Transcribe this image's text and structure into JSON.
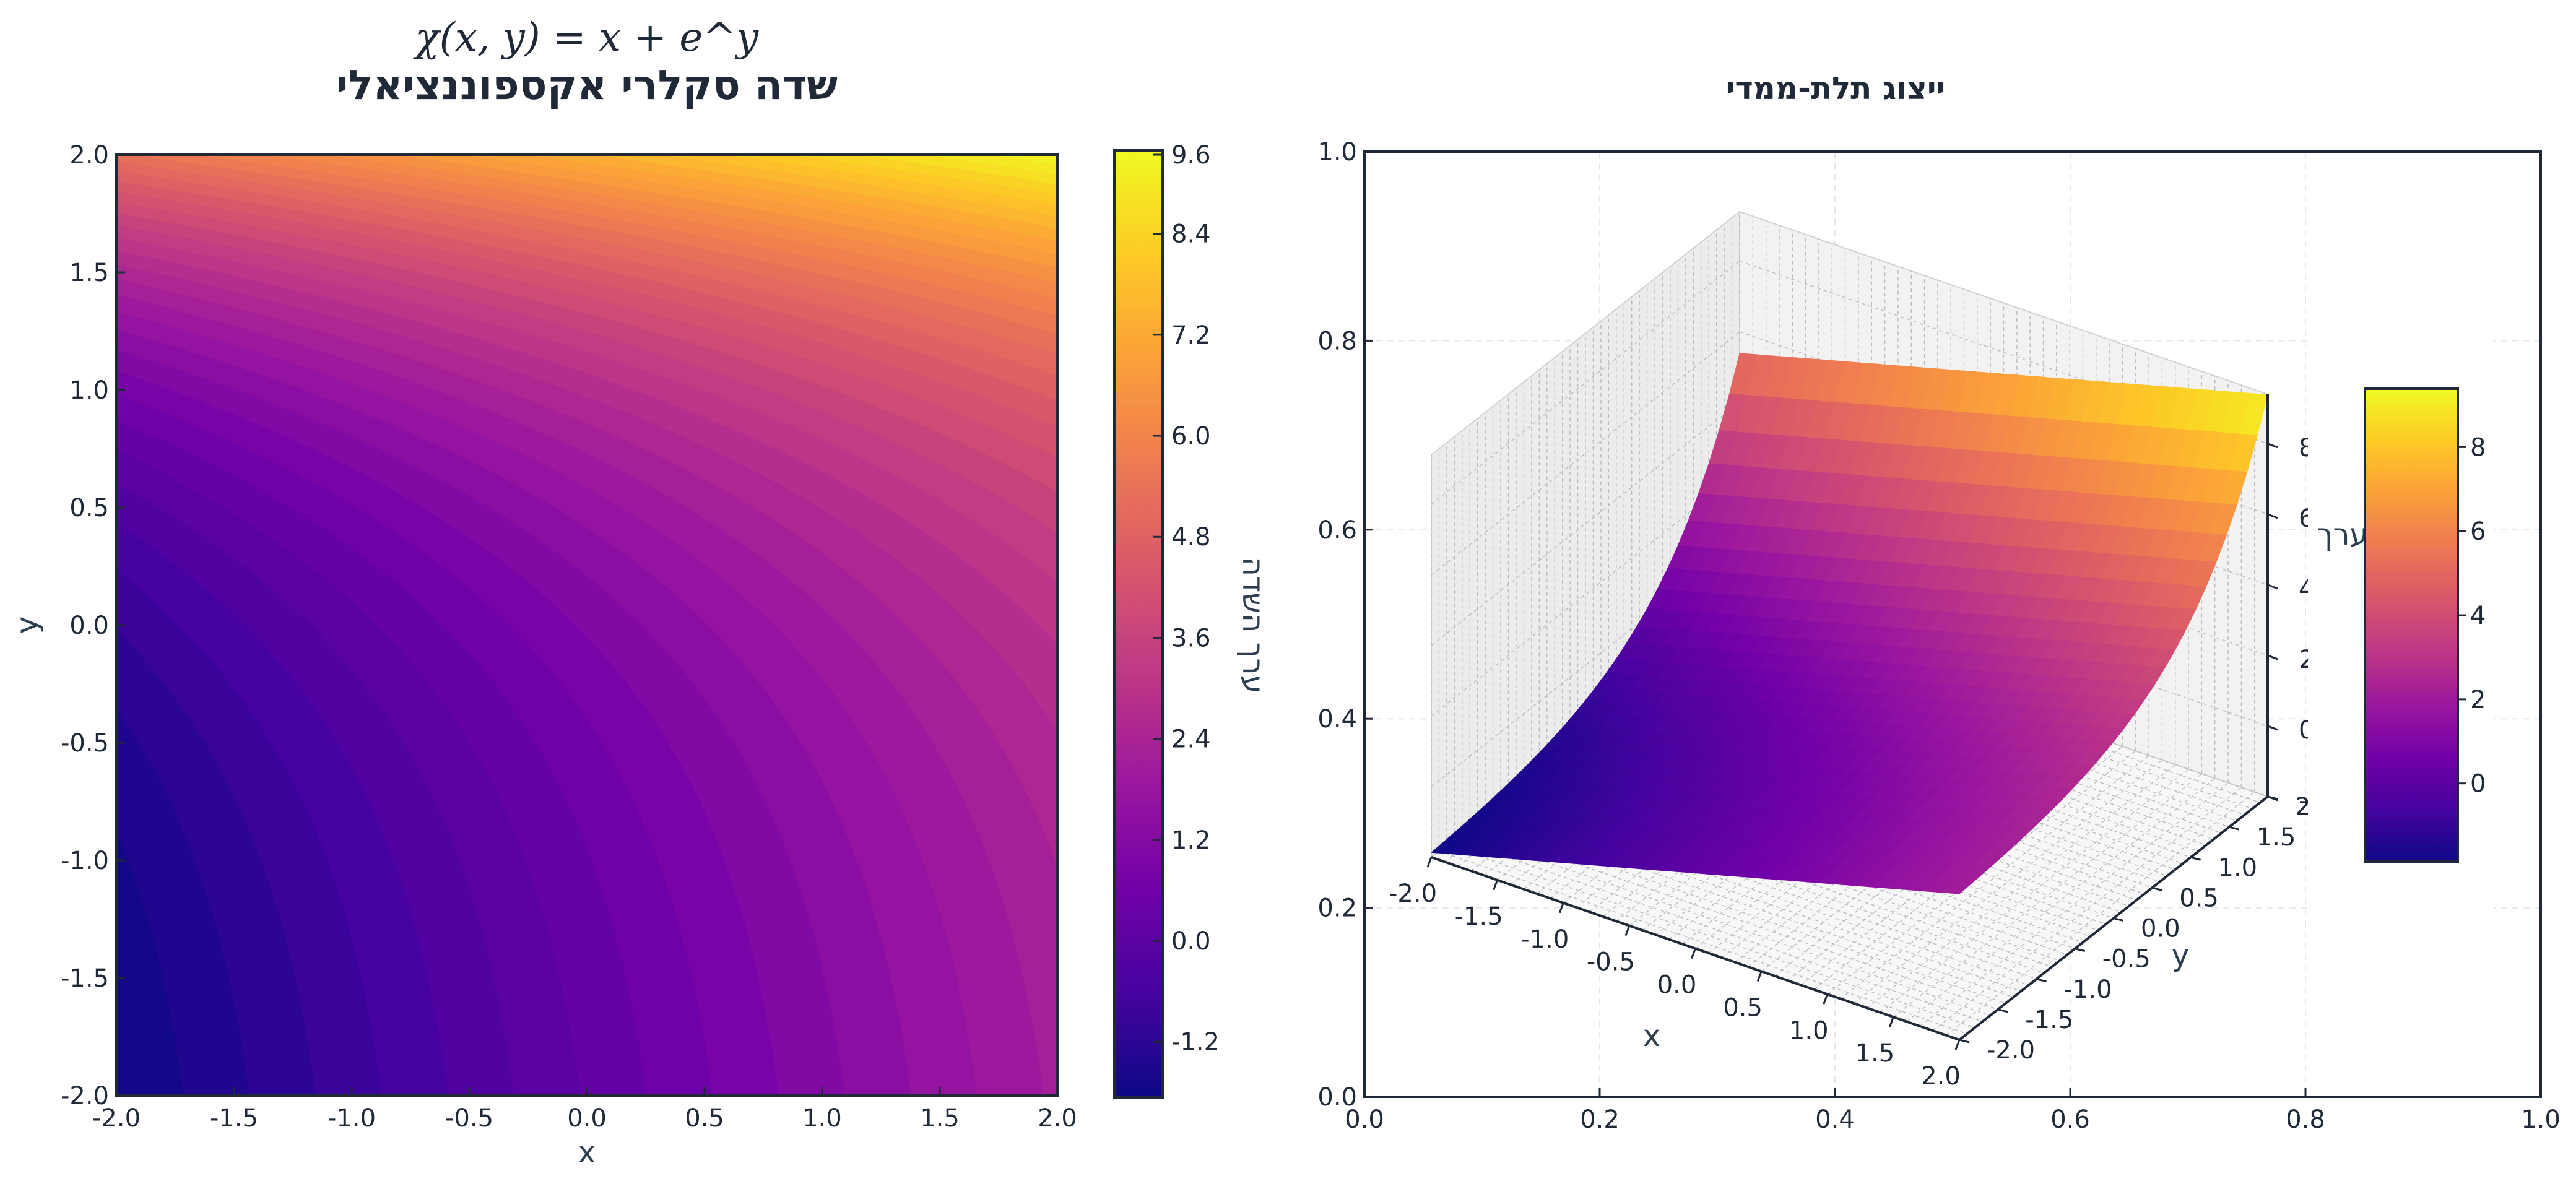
{
  "chart_data": [
    {
      "type": "heatmap",
      "function": "x + e^y",
      "formula_label": "χ(x, y) = x + e^y",
      "title": "שדה סקלרי אקספוננציאלי",
      "xlabel": "x",
      "ylabel": "y",
      "xlim": [
        -2.0,
        2.0
      ],
      "ylim": [
        -2.0,
        2.0
      ],
      "xticks": [
        "-2.0",
        "-1.5",
        "-1.0",
        "-0.5",
        "0.0",
        "0.5",
        "1.0",
        "1.5",
        "2.0"
      ],
      "yticks": [
        "-2.0",
        "-1.5",
        "-1.0",
        "-0.5",
        "0.0",
        "0.5",
        "1.0",
        "1.5",
        "2.0"
      ],
      "levels": 40,
      "colormap": "plasma",
      "colorbar": {
        "label": "ערך השדה",
        "range": [
          -1.86,
          9.39
        ],
        "ticks": [
          "-1.2",
          "0.0",
          "1.2",
          "2.4",
          "3.6",
          "4.8",
          "6.0",
          "7.2",
          "8.4",
          "9.6"
        ]
      }
    },
    {
      "type": "surface",
      "function": "x + e^y",
      "title": "ייצוג תלת-ממדי",
      "xlabel": "x",
      "ylabel": "y",
      "zlabel": "ערך",
      "xticks": [
        "-2.0",
        "-1.5",
        "-1.0",
        "-0.5",
        "0.0",
        "0.5",
        "1.0",
        "1.5",
        "2.0"
      ],
      "yticks": [
        "-2.0",
        "-1.5",
        "-1.0",
        "-0.5",
        "0.0",
        "0.5",
        "1.0",
        "1.5",
        "2.0"
      ],
      "zticks": [
        "-2",
        "0",
        "2",
        "4",
        "6",
        "8"
      ],
      "frame_xticks": [
        "0.0",
        "0.2",
        "0.4",
        "0.6",
        "0.8",
        "1.0"
      ],
      "frame_yticks": [
        "0.0",
        "0.2",
        "0.4",
        "0.6",
        "0.8",
        "1.0"
      ],
      "colorbar": {
        "range": [
          -1.86,
          9.39
        ],
        "ticks": [
          "0",
          "2",
          "4",
          "6",
          "8"
        ]
      }
    }
  ],
  "colormap_stops": [
    "#0d0887",
    "#46039f",
    "#7201a8",
    "#9c179e",
    "#bd3786",
    "#d8576b",
    "#ed7953",
    "#fb9f3a",
    "#fdca26",
    "#f0f921"
  ]
}
